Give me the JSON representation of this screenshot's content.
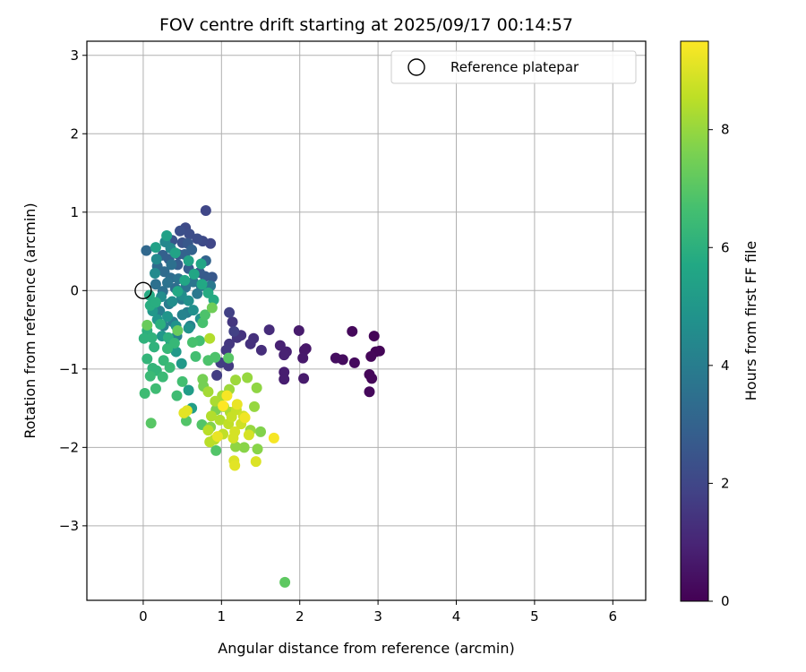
{
  "chart_data": {
    "type": "scatter",
    "title": "FOV centre drift starting at 2025/09/17 00:14:57",
    "xlabel": "Angular distance from reference (arcmin)",
    "ylabel": "Rotation from reference (arcmin)",
    "xlim": [
      -0.72,
      6.42
    ],
    "ylim": [
      -3.95,
      3.18
    ],
    "xticks": [
      0,
      1,
      2,
      3,
      4,
      5,
      6
    ],
    "yticks": [
      -3,
      -2,
      -1,
      0,
      1,
      2,
      3
    ],
    "grid": true,
    "legend": {
      "placement": "top-right",
      "entries": [
        {
          "label": "Reference platepar",
          "marker": "hollow-circle"
        }
      ]
    },
    "reference_point": {
      "x": 0,
      "y": 0
    },
    "colorbar": {
      "label": "Hours from first FF file",
      "colormap": "viridis",
      "range": [
        0,
        9.5
      ],
      "ticks": [
        0,
        2,
        4,
        6,
        8
      ]
    },
    "series": [
      {
        "color_by": "hours",
        "points": [
          [
            2.95,
            -0.58,
            0.1
          ],
          [
            2.97,
            -0.78,
            0.1
          ],
          [
            3.02,
            -0.77,
            0.1
          ],
          [
            2.91,
            -0.84,
            0.15
          ],
          [
            2.89,
            -1.07,
            0.15
          ],
          [
            2.92,
            -1.12,
            0.15
          ],
          [
            2.89,
            -1.29,
            0.2
          ],
          [
            2.67,
            -0.52,
            0.2
          ],
          [
            2.7,
            -0.92,
            0.25
          ],
          [
            2.55,
            -0.88,
            0.3
          ],
          [
            2.46,
            -0.86,
            0.35
          ],
          [
            2.08,
            -0.74,
            0.6
          ],
          [
            2.06,
            -0.76,
            0.6
          ],
          [
            2.04,
            -0.86,
            0.65
          ],
          [
            1.99,
            -0.51,
            0.7
          ],
          [
            2.05,
            -1.12,
            0.7
          ],
          [
            1.8,
            -1.04,
            0.8
          ],
          [
            1.8,
            -1.13,
            0.8
          ],
          [
            1.83,
            -0.78,
            0.85
          ],
          [
            1.75,
            -0.7,
            0.9
          ],
          [
            1.8,
            -0.82,
            0.9
          ],
          [
            1.61,
            -0.5,
            1.2
          ],
          [
            1.51,
            -0.76,
            1.25
          ],
          [
            1.41,
            -0.61,
            1.3
          ],
          [
            1.37,
            -0.68,
            1.35
          ],
          [
            1.25,
            -0.57,
            1.4
          ],
          [
            1.2,
            -0.6,
            1.45
          ],
          [
            1.14,
            -0.4,
            1.5
          ],
          [
            1.1,
            -0.68,
            1.55
          ],
          [
            1.06,
            -0.76,
            1.6
          ],
          [
            1.09,
            -0.96,
            1.6
          ],
          [
            0.94,
            -1.08,
            1.7
          ],
          [
            0.99,
            -0.92,
            1.7
          ],
          [
            1.1,
            -0.28,
            1.8
          ],
          [
            1.16,
            -0.52,
            1.8
          ],
          [
            0.8,
            1.02,
            2.0
          ],
          [
            0.86,
            0.6,
            2.0
          ],
          [
            0.76,
            0.63,
            2.1
          ],
          [
            0.54,
            0.8,
            2.1
          ],
          [
            0.59,
            0.72,
            2.2
          ],
          [
            0.69,
            0.66,
            2.2
          ],
          [
            0.47,
            0.76,
            2.3
          ],
          [
            0.5,
            0.61,
            2.4
          ],
          [
            0.37,
            0.64,
            2.5
          ],
          [
            0.57,
            0.6,
            2.6
          ],
          [
            0.45,
            0.46,
            2.6
          ],
          [
            0.88,
            0.17,
            2.6
          ],
          [
            0.79,
            0.18,
            2.7
          ],
          [
            0.72,
            0.23,
            2.7
          ],
          [
            0.58,
            0.28,
            2.8
          ],
          [
            0.44,
            0.33,
            2.8
          ],
          [
            0.33,
            0.4,
            2.9
          ],
          [
            0.25,
            0.45,
            2.9
          ],
          [
            0.8,
            0.38,
            3.0
          ],
          [
            0.62,
            0.52,
            3.0
          ],
          [
            0.53,
            0.46,
            3.0
          ],
          [
            0.04,
            0.51,
            3.2
          ],
          [
            0.18,
            0.31,
            3.3
          ],
          [
            0.27,
            0.24,
            3.3
          ],
          [
            0.35,
            0.16,
            3.4
          ],
          [
            0.41,
            0.03,
            3.4
          ],
          [
            0.25,
            -0.01,
            3.5
          ],
          [
            0.16,
            0.08,
            3.5
          ],
          [
            0.36,
            0.33,
            3.5
          ],
          [
            0.45,
            0.15,
            3.6
          ],
          [
            0.31,
            0.1,
            3.6
          ],
          [
            0.54,
            0.04,
            3.6
          ],
          [
            0.64,
            0.11,
            3.7
          ],
          [
            0.74,
            0.06,
            3.7
          ],
          [
            0.86,
            0.06,
            3.8
          ],
          [
            0.69,
            -0.04,
            3.8
          ],
          [
            0.49,
            -0.11,
            3.9
          ],
          [
            0.33,
            -0.17,
            3.9
          ],
          [
            0.21,
            -0.26,
            4.0
          ],
          [
            0.56,
            -0.28,
            4.0
          ],
          [
            0.38,
            -0.4,
            4.0
          ],
          [
            0.26,
            -0.45,
            4.1
          ],
          [
            0.43,
            -0.58,
            4.1
          ],
          [
            0.6,
            -0.45,
            4.2
          ],
          [
            0.5,
            -0.31,
            4.2
          ],
          [
            0.28,
            0.62,
            4.4
          ],
          [
            0.35,
            0.54,
            4.4
          ],
          [
            0.17,
            0.4,
            4.5
          ],
          [
            0.15,
            0.22,
            4.5
          ],
          [
            0.23,
            -0.08,
            4.6
          ],
          [
            0.37,
            -0.14,
            4.6
          ],
          [
            0.49,
            -0.06,
            4.6
          ],
          [
            0.58,
            -0.13,
            4.7
          ],
          [
            0.64,
            -0.25,
            4.7
          ],
          [
            0.73,
            -0.36,
            4.8
          ],
          [
            0.58,
            -0.48,
            4.8
          ],
          [
            0.42,
            -0.45,
            4.8
          ],
          [
            0.31,
            -0.33,
            4.9
          ],
          [
            0.18,
            -0.37,
            4.9
          ],
          [
            0.12,
            -0.26,
            5.0
          ],
          [
            0.24,
            -0.58,
            5.0
          ],
          [
            0.35,
            -0.69,
            5.0
          ],
          [
            0.42,
            -0.78,
            5.1
          ],
          [
            0.49,
            -0.93,
            5.1
          ],
          [
            0.58,
            -1.27,
            5.2
          ],
          [
            0.62,
            -1.5,
            5.3
          ],
          [
            0.3,
            0.7,
            5.4
          ],
          [
            0.16,
            0.55,
            5.4
          ],
          [
            0.41,
            0.48,
            5.5
          ],
          [
            0.58,
            0.38,
            5.5
          ],
          [
            0.74,
            0.34,
            5.6
          ],
          [
            0.65,
            0.21,
            5.6
          ],
          [
            0.53,
            0.13,
            5.6
          ],
          [
            0.44,
            -0.01,
            5.7
          ],
          [
            0.75,
            0.08,
            5.7
          ],
          [
            0.83,
            -0.03,
            5.8
          ],
          [
            0.9,
            -0.12,
            5.8
          ],
          [
            0.08,
            -0.06,
            5.8
          ],
          [
            0.09,
            -0.19,
            5.9
          ],
          [
            0.16,
            -0.15,
            5.9
          ],
          [
            0.22,
            -0.43,
            6.0
          ],
          [
            0.32,
            -0.6,
            6.0
          ],
          [
            0.05,
            -0.51,
            6.0
          ],
          [
            0.11,
            -0.6,
            6.1
          ],
          [
            0.14,
            -0.72,
            6.1
          ],
          [
            0.01,
            -0.61,
            6.1
          ],
          [
            0.05,
            -0.87,
            6.2
          ],
          [
            0.12,
            -0.99,
            6.2
          ],
          [
            0.17,
            -1.02,
            6.2
          ],
          [
            0.26,
            -0.89,
            6.3
          ],
          [
            0.31,
            -0.74,
            6.3
          ],
          [
            0.4,
            -0.67,
            6.3
          ],
          [
            0.34,
            -0.98,
            6.4
          ],
          [
            0.25,
            -1.1,
            6.4
          ],
          [
            0.09,
            -1.09,
            6.4
          ],
          [
            0.16,
            -1.25,
            6.5
          ],
          [
            0.02,
            -1.31,
            6.5
          ],
          [
            0.43,
            -1.34,
            6.5
          ],
          [
            0.5,
            -1.16,
            6.6
          ],
          [
            0.67,
            -0.84,
            6.6
          ],
          [
            0.72,
            -0.64,
            6.6
          ],
          [
            0.63,
            -0.66,
            6.7
          ],
          [
            0.76,
            -0.41,
            6.7
          ],
          [
            0.79,
            -0.31,
            6.8
          ],
          [
            0.83,
            -0.89,
            6.8
          ],
          [
            0.92,
            -0.85,
            6.8
          ],
          [
            0.93,
            -2.04,
            6.9
          ],
          [
            0.75,
            -1.71,
            6.9
          ],
          [
            0.55,
            -1.66,
            6.9
          ],
          [
            0.1,
            -1.69,
            7.0
          ],
          [
            1.09,
            -0.86,
            7.0
          ],
          [
            1.81,
            -3.72,
            7.1
          ],
          [
            0.44,
            -0.51,
            7.3
          ],
          [
            0.05,
            -0.44,
            7.3
          ],
          [
            0.88,
            -0.22,
            7.4
          ],
          [
            0.76,
            -1.13,
            7.5
          ],
          [
            0.77,
            -1.22,
            7.5
          ],
          [
            0.93,
            -1.52,
            7.6
          ],
          [
            0.86,
            -1.74,
            7.7
          ],
          [
            1.5,
            -1.8,
            7.7
          ],
          [
            1.46,
            -2.02,
            7.8
          ],
          [
            1.29,
            -2.0,
            7.8
          ],
          [
            1.18,
            -1.99,
            7.9
          ],
          [
            1.45,
            -1.24,
            7.9
          ],
          [
            1.42,
            -1.48,
            8.0
          ],
          [
            1.37,
            -1.78,
            8.0
          ],
          [
            1.33,
            -1.11,
            8.0
          ],
          [
            1.18,
            -1.14,
            8.1
          ],
          [
            1.1,
            -1.26,
            8.1
          ],
          [
            1.01,
            -1.34,
            8.2
          ],
          [
            0.83,
            -1.29,
            8.2
          ],
          [
            0.92,
            -1.41,
            8.3
          ],
          [
            1.03,
            -1.48,
            8.3
          ],
          [
            1.11,
            -1.55,
            8.3
          ],
          [
            0.98,
            -1.65,
            8.4
          ],
          [
            0.87,
            -1.6,
            8.4
          ],
          [
            0.83,
            -1.78,
            8.5
          ],
          [
            0.91,
            -1.9,
            8.5
          ],
          [
            0.85,
            -1.93,
            8.5
          ],
          [
            1.02,
            -1.83,
            8.6
          ],
          [
            1.09,
            -1.7,
            8.6
          ],
          [
            1.13,
            -1.61,
            8.7
          ],
          [
            1.19,
            -1.52,
            8.7
          ],
          [
            1.28,
            -1.6,
            8.8
          ],
          [
            1.25,
            -1.7,
            8.8
          ],
          [
            1.17,
            -1.8,
            8.9
          ],
          [
            1.15,
            -1.88,
            8.9
          ],
          [
            1.35,
            -1.84,
            8.9
          ],
          [
            1.44,
            -2.18,
            9.0
          ],
          [
            1.16,
            -2.17,
            9.0
          ],
          [
            1.17,
            -2.23,
            9.1
          ],
          [
            0.56,
            -1.53,
            9.1
          ],
          [
            0.52,
            -1.56,
            9.1
          ],
          [
            0.95,
            -1.86,
            9.2
          ],
          [
            1.3,
            -1.62,
            9.3
          ],
          [
            1.67,
            -1.88,
            9.4
          ],
          [
            0.85,
            -0.61,
            8.4
          ],
          [
            1.07,
            -1.34,
            9.4
          ],
          [
            1.02,
            -1.47,
            9.5
          ],
          [
            1.2,
            -1.45,
            9.2
          ]
        ]
      }
    ]
  }
}
